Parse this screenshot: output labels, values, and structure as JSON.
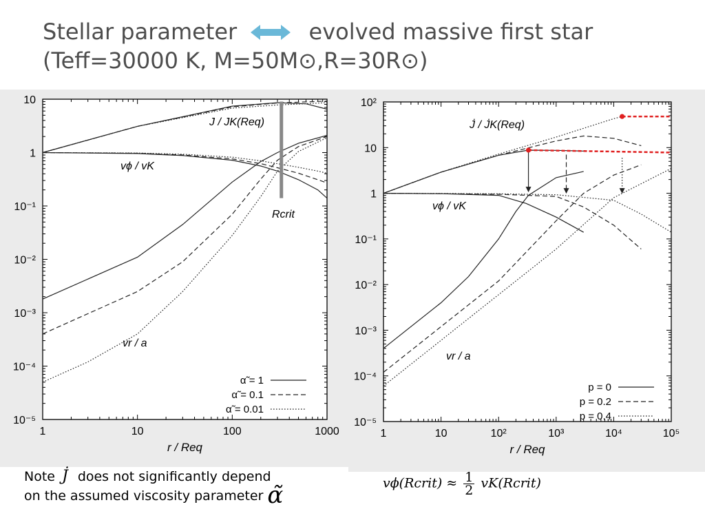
{
  "slide": {
    "title_left": "Stellar parameter",
    "title_right": "evolved massive first star",
    "subtitle": "(Teff=30000 K, M=50M⊙,R=30R⊙)",
    "arrow_color": "#6ab8d8",
    "title_color": "#4d4d4d",
    "note_line1_prefix": "Note",
    "note_symbol": "J̇",
    "note_line1_suffix": "does not significantly depend",
    "note_line2": "on the assumed viscosity parameter",
    "note_alpha": "α̃",
    "formula": {
      "lhs": "vϕ(Rcrit) ≈",
      "numerator": "1",
      "denominator": "2",
      "rhs": "vK(Rcrit)"
    }
  },
  "chart_data": [
    {
      "type": "line",
      "xscale": "log",
      "yscale": "log",
      "xlim": [
        1,
        1000
      ],
      "ylim": [
        1e-05,
        10
      ],
      "xticks": [
        "1",
        "10",
        "100",
        "1000"
      ],
      "yticks": [
        "10⁻⁵",
        "10⁻⁴",
        "10⁻³",
        "10⁻²",
        "10⁻¹",
        "1",
        "10"
      ],
      "xlabel": "r / Req",
      "ylabel": "",
      "grid": false,
      "legend_position": "bottom-right",
      "legend": [
        "α̃ = 1",
        "α̃ = 0.1",
        "α̃ = 0.01"
      ],
      "annotations": {
        "j_label": "J / JK(Req)",
        "vphi_label": "vϕ / vK",
        "vr_label": "vr / a",
        "rcrit_label": "Rcrit",
        "rcrit_x": 330,
        "rcrit_y_range": [
          0.14,
          9
        ]
      },
      "series": [
        {
          "name": "α̃ = 1",
          "style": "solid",
          "x": [
            1,
            10,
            100,
            300,
            600,
            1000
          ],
          "y": [
            1,
            3.1,
            7.4,
            8.6,
            8.2,
            6.5
          ],
          "group": "J"
        },
        {
          "name": "α̃ = 0.1",
          "style": "dashed",
          "x": [
            1,
            10,
            100,
            300,
            1000
          ],
          "y": [
            1,
            3.1,
            7.2,
            8.5,
            9.2
          ],
          "group": "J"
        },
        {
          "name": "α̃ = 0.01",
          "style": "dotted",
          "x": [
            1,
            10,
            100,
            300,
            1000
          ],
          "y": [
            1,
            3.1,
            6.8,
            7.8,
            8.6
          ],
          "group": "J"
        },
        {
          "name": "α̃ = 1",
          "style": "solid",
          "x": [
            1,
            10,
            30,
            100,
            200,
            300,
            500,
            800,
            1000
          ],
          "y": [
            1,
            0.96,
            0.88,
            0.72,
            0.56,
            0.45,
            0.31,
            0.2,
            0.14
          ],
          "group": "vphi"
        },
        {
          "name": "α̃ = 0.1",
          "style": "dashed",
          "x": [
            1,
            10,
            30,
            100,
            200,
            300,
            500,
            800,
            1000
          ],
          "y": [
            1,
            0.97,
            0.9,
            0.76,
            0.62,
            0.52,
            0.41,
            0.31,
            0.27
          ],
          "group": "vphi"
        },
        {
          "name": "α̃ = 0.01",
          "style": "dotted",
          "x": [
            1,
            10,
            30,
            100,
            200,
            300,
            500,
            800,
            1000
          ],
          "y": [
            1,
            0.98,
            0.93,
            0.82,
            0.7,
            0.62,
            0.53,
            0.45,
            0.41
          ],
          "group": "vphi"
        },
        {
          "name": "α̃ = 1",
          "style": "solid",
          "x": [
            1,
            10,
            30,
            100,
            200,
            300,
            500,
            1000
          ],
          "y": [
            0.0018,
            0.011,
            0.045,
            0.28,
            0.68,
            1,
            1.5,
            2.1
          ],
          "group": "vr"
        },
        {
          "name": "α̃ = 0.1",
          "style": "dashed",
          "x": [
            1,
            10,
            30,
            100,
            200,
            300,
            500,
            1000
          ],
          "y": [
            0.0004,
            0.0025,
            0.009,
            0.07,
            0.32,
            0.72,
            1.3,
            2.0
          ],
          "group": "vr"
        },
        {
          "name": "α̃ = 0.01",
          "style": "dotted",
          "x": [
            1,
            3,
            10,
            30,
            100,
            200,
            300,
            500,
            1000
          ],
          "y": [
            5e-05,
            0.00012,
            0.0004,
            0.0025,
            0.028,
            0.15,
            0.45,
            1.05,
            1.9
          ],
          "group": "vr"
        }
      ]
    },
    {
      "type": "line",
      "xscale": "log",
      "yscale": "log",
      "xlim": [
        1,
        100000
      ],
      "ylim": [
        1e-05,
        100
      ],
      "xticks": [
        "1",
        "10",
        "10²",
        "10³",
        "10⁴",
        "10⁵"
      ],
      "yticks": [
        "10⁻⁵",
        "10⁻⁴",
        "10⁻³",
        "10⁻²",
        "10⁻¹",
        "1",
        "10",
        "10²"
      ],
      "xlabel": "r / Req",
      "ylabel": "",
      "grid": false,
      "legend_position": "bottom-right",
      "legend": [
        "p = 0",
        "p = 0.2",
        "p = 0.4"
      ],
      "highlight_color": "#e02020",
      "annotations": {
        "j_label": "J̇ / J̇K(Req)",
        "vphi_label": "vϕ / vK",
        "vr_label": "vr / a"
      },
      "red_markers": [
        {
          "x": 330,
          "y": 8.8,
          "to_x": 100000,
          "to_y": 7.8
        },
        {
          "x": 14000,
          "y": 48,
          "to_x": 100000,
          "to_y": 48
        }
      ],
      "crit_arrows": [
        {
          "style": "solid",
          "x": 330,
          "from_y": 8.5,
          "to_y": 1.05
        },
        {
          "style": "dashed",
          "x": 1500,
          "from_y": 7,
          "to_y": 0.98
        },
        {
          "style": "dotted",
          "x": 14000,
          "from_y": 6,
          "to_y": 0.98
        }
      ],
      "series": [
        {
          "name": "p = 0",
          "style": "solid",
          "x": [
            1,
            10,
            100,
            330,
            1000,
            3000
          ],
          "y": [
            1,
            2.9,
            6.8,
            8.8,
            8.7,
            8.4
          ],
          "group": "J"
        },
        {
          "name": "p = 0.2",
          "style": "dashed",
          "x": [
            1,
            10,
            100,
            1000,
            3000,
            10000,
            30000
          ],
          "y": [
            1,
            2.9,
            6.8,
            14,
            18,
            16,
            11
          ],
          "group": "J"
        },
        {
          "name": "p = 0.4",
          "style": "dotted",
          "x": [
            1,
            10,
            100,
            1000,
            10000,
            14000
          ],
          "y": [
            1,
            2.9,
            7.2,
            17,
            43,
            48
          ],
          "group": "J"
        },
        {
          "name": "p = 0",
          "style": "solid",
          "x": [
            1,
            10,
            100,
            300,
            1000,
            3000
          ],
          "y": [
            1,
            0.98,
            0.9,
            0.6,
            0.3,
            0.14
          ],
          "group": "vphi"
        },
        {
          "name": "p = 0.2",
          "style": "dashed",
          "x": [
            1,
            10,
            100,
            1000,
            3000,
            10000,
            30000
          ],
          "y": [
            1,
            0.98,
            0.95,
            0.85,
            0.5,
            0.2,
            0.06
          ],
          "group": "vphi"
        },
        {
          "name": "p = 0.4",
          "style": "dotted",
          "x": [
            1,
            10,
            100,
            1000,
            10000,
            30000,
            100000
          ],
          "y": [
            1,
            0.99,
            0.97,
            0.93,
            0.7,
            0.35,
            0.14
          ],
          "group": "vphi"
        },
        {
          "name": "p = 0",
          "style": "solid",
          "x": [
            1,
            10,
            30,
            100,
            200,
            330,
            1000,
            3000
          ],
          "y": [
            0.0004,
            0.004,
            0.015,
            0.1,
            0.4,
            0.9,
            2.2,
            3.0
          ],
          "group": "vr"
        },
        {
          "name": "p = 0.2",
          "style": "dashed",
          "x": [
            1,
            10,
            100,
            1000,
            3000,
            10000,
            30000
          ],
          "y": [
            0.00012,
            0.0012,
            0.012,
            0.25,
            1.0,
            2.5,
            4.2
          ],
          "group": "vr"
        },
        {
          "name": "p = 0.4",
          "style": "dotted",
          "x": [
            1,
            10,
            100,
            1000,
            10000,
            100000
          ],
          "y": [
            6e-05,
            0.0006,
            0.006,
            0.06,
            0.8,
            3.5
          ],
          "group": "vr"
        }
      ]
    }
  ]
}
